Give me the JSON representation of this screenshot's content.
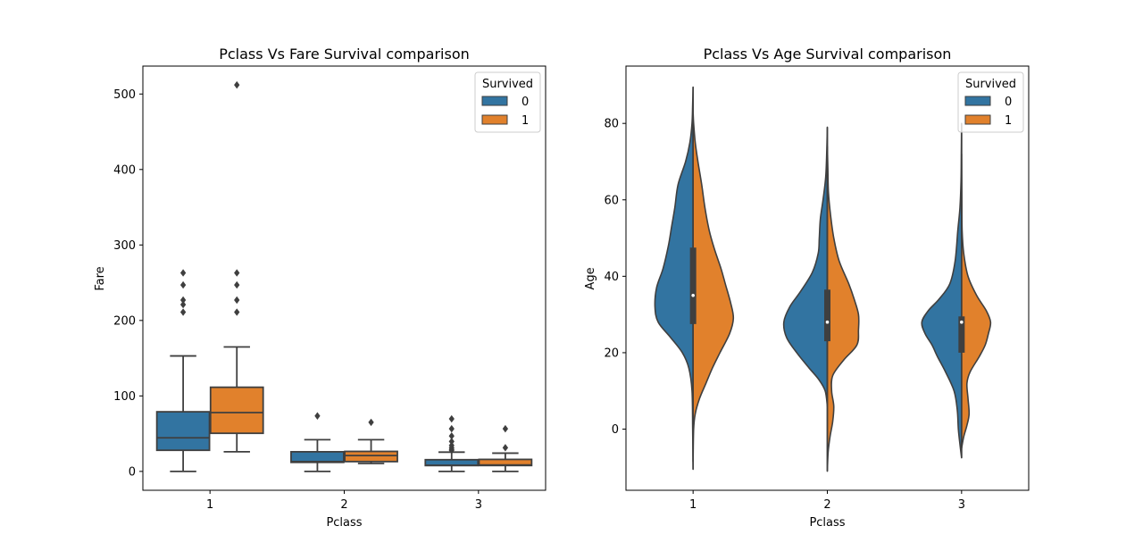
{
  "colors": {
    "survived_0": "#3274a1",
    "survived_1": "#e1812c",
    "line": "#3f3f3f"
  },
  "chart_data": [
    {
      "type": "box",
      "title": "Pclass Vs Fare Survival comparison",
      "xlabel": "Pclass",
      "ylabel": "Fare",
      "categories": [
        "1",
        "2",
        "3"
      ],
      "ylim": [
        -25,
        537
      ],
      "yticks": [
        0,
        100,
        200,
        300,
        400,
        500
      ],
      "legend": {
        "title": "Survived",
        "entries": [
          "0",
          "1"
        ],
        "placement": "top-right"
      },
      "series": [
        {
          "name": "0",
          "boxes": [
            {
              "category": "1",
              "min": 0,
              "q1": 28,
              "median": 44.5,
              "q3": 79,
              "max": 153,
              "outliers": [
                211,
                221,
                227,
                247,
                263
              ]
            },
            {
              "category": "2",
              "min": 0,
              "q1": 12,
              "median": 13,
              "q3": 26,
              "max": 42,
              "outliers": [
                73.5
              ]
            },
            {
              "category": "3",
              "min": 0,
              "q1": 7.75,
              "median": 8.05,
              "q3": 15.5,
              "max": 25.5,
              "outliers": [
                27.9,
                29.1,
                31.3,
                34.4,
                39.7,
                46.9,
                56.5,
                69.6
              ]
            }
          ]
        },
        {
          "name": "1",
          "boxes": [
            {
              "category": "1",
              "min": 26,
              "q1": 50.5,
              "median": 77.9,
              "q3": 111.5,
              "max": 164.9,
              "outliers": [
                211,
                227,
                247,
                263,
                512
              ]
            },
            {
              "category": "2",
              "min": 10.5,
              "q1": 13,
              "median": 21,
              "q3": 26.5,
              "max": 42,
              "outliers": [
                65
              ]
            },
            {
              "category": "3",
              "min": 0,
              "q1": 7.8,
              "median": 8.5,
              "q3": 15.9,
              "max": 24.2,
              "outliers": [
                31.4,
                56.5
              ]
            }
          ]
        }
      ]
    },
    {
      "type": "violin",
      "title": "Pclass Vs Age Survival comparison",
      "xlabel": "Pclass",
      "ylabel": "Age",
      "categories": [
        "1",
        "2",
        "3"
      ],
      "ylim": [
        -16,
        95
      ],
      "yticks": [
        0,
        20,
        40,
        60,
        80
      ],
      "legend": {
        "title": "Survived",
        "entries": [
          "0",
          "1"
        ],
        "placement": "top-right"
      },
      "quartiles": [
        {
          "category": "1",
          "q1": 27.5,
          "median": 35,
          "q3": 47.5
        },
        {
          "category": "2",
          "q1": 23,
          "median": 28,
          "q3": 36.5
        },
        {
          "category": "3",
          "q1": 20,
          "median": 28,
          "q3": 29.5
        }
      ],
      "series": [
        {
          "name": "0",
          "density": [
            {
              "category": "1",
              "ymin": -10.5,
              "ymax": 89.5,
              "profile": [
                [
                  -10.5,
                  0
                ],
                [
                  0,
                  0.008
                ],
                [
                  10,
                  0.02
                ],
                [
                  16,
                  0.08
                ],
                [
                  20,
                  0.2
                ],
                [
                  24,
                  0.42
                ],
                [
                  28,
                  0.65
                ],
                [
                  32,
                  0.71
                ],
                [
                  37,
                  0.68
                ],
                [
                  42,
                  0.56
                ],
                [
                  48,
                  0.46
                ],
                [
                  53,
                  0.4
                ],
                [
                  58,
                  0.34
                ],
                [
                  64,
                  0.28
                ],
                [
                  70,
                  0.14
                ],
                [
                  75,
                  0.06
                ],
                [
                  80,
                  0.02
                ],
                [
                  85,
                  0.008
                ],
                [
                  89.5,
                  0
                ]
              ]
            },
            {
              "category": "2",
              "ymin": 6,
              "ymax": 79,
              "profile": [
                [
                  6,
                  0
                ],
                [
                  10,
                  0.04
                ],
                [
                  13,
                  0.16
                ],
                [
                  16,
                  0.34
                ],
                [
                  20,
                  0.57
                ],
                [
                  24,
                  0.76
                ],
                [
                  28,
                  0.81
                ],
                [
                  32,
                  0.7
                ],
                [
                  36,
                  0.5
                ],
                [
                  41,
                  0.28
                ],
                [
                  46,
                  0.17
                ],
                [
                  50,
                  0.15
                ],
                [
                  55,
                  0.13
                ],
                [
                  60,
                  0.08
                ],
                [
                  66,
                  0.03
                ],
                [
                  73,
                  0.01
                ],
                [
                  79,
                  0
                ]
              ]
            },
            {
              "category": "3",
              "ymin": -7.5,
              "ymax": 80,
              "profile": [
                [
                  -7.5,
                  0
                ],
                [
                  -4,
                  0.03
                ],
                [
                  0,
                  0.06
                ],
                [
                  5,
                  0.08
                ],
                [
                  10,
                  0.14
                ],
                [
                  15,
                  0.3
                ],
                [
                  19,
                  0.45
                ],
                [
                  22,
                  0.55
                ],
                [
                  25,
                  0.68
                ],
                [
                  28,
                  0.74
                ],
                [
                  31,
                  0.62
                ],
                [
                  34,
                  0.42
                ],
                [
                  38,
                  0.22
                ],
                [
                  44,
                  0.12
                ],
                [
                  52,
                  0.07
                ],
                [
                  58,
                  0.03
                ],
                [
                  65,
                  0.01
                ],
                [
                  72,
                  0.005
                ],
                [
                  80,
                  0
                ]
              ]
            }
          ]
        },
        {
          "name": "1",
          "density": [
            {
              "category": "1",
              "ymin": -8.5,
              "ymax": 83,
              "profile": [
                [
                  -8.5,
                  0
                ],
                [
                  0,
                  0.01
                ],
                [
                  4,
                  0.04
                ],
                [
                  8,
                  0.12
                ],
                [
                  12,
                  0.24
                ],
                [
                  16,
                  0.36
                ],
                [
                  20,
                  0.5
                ],
                [
                  25,
                  0.68
                ],
                [
                  29,
                  0.75
                ],
                [
                  33,
                  0.7
                ],
                [
                  38,
                  0.6
                ],
                [
                  42,
                  0.52
                ],
                [
                  47,
                  0.4
                ],
                [
                  52,
                  0.3
                ],
                [
                  58,
                  0.22
                ],
                [
                  64,
                  0.16
                ],
                [
                  70,
                  0.09
                ],
                [
                  75,
                  0.04
                ],
                [
                  80,
                  0.01
                ],
                [
                  83,
                  0
                ]
              ]
            },
            {
              "category": "2",
              "ymin": -11,
              "ymax": 74,
              "profile": [
                [
                  -11,
                  0
                ],
                [
                  -6,
                  0.015
                ],
                [
                  -2,
                  0.05
                ],
                [
                  2,
                  0.1
                ],
                [
                  6,
                  0.12
                ],
                [
                  10,
                  0.08
                ],
                [
                  14,
                  0.1
                ],
                [
                  18,
                  0.3
                ],
                [
                  22,
                  0.55
                ],
                [
                  26,
                  0.58
                ],
                [
                  30,
                  0.58
                ],
                [
                  34,
                  0.5
                ],
                [
                  38,
                  0.4
                ],
                [
                  44,
                  0.22
                ],
                [
                  50,
                  0.12
                ],
                [
                  56,
                  0.06
                ],
                [
                  62,
                  0.02
                ],
                [
                  68,
                  0.01
                ],
                [
                  74,
                  0
                ]
              ]
            },
            {
              "category": "3",
              "ymin": -5,
              "ymax": 72,
              "profile": [
                [
                  -5,
                  0
                ],
                [
                  -2,
                  0.04
                ],
                [
                  1,
                  0.1
                ],
                [
                  4,
                  0.14
                ],
                [
                  8,
                  0.12
                ],
                [
                  12,
                  0.1
                ],
                [
                  15,
                  0.16
                ],
                [
                  19,
                  0.33
                ],
                [
                  22,
                  0.44
                ],
                [
                  25,
                  0.5
                ],
                [
                  28,
                  0.54
                ],
                [
                  31,
                  0.46
                ],
                [
                  35,
                  0.28
                ],
                [
                  40,
                  0.12
                ],
                [
                  46,
                  0.04
                ],
                [
                  52,
                  0.01
                ],
                [
                  60,
                  0.005
                ],
                [
                  72,
                  0
                ]
              ]
            }
          ]
        }
      ]
    }
  ]
}
